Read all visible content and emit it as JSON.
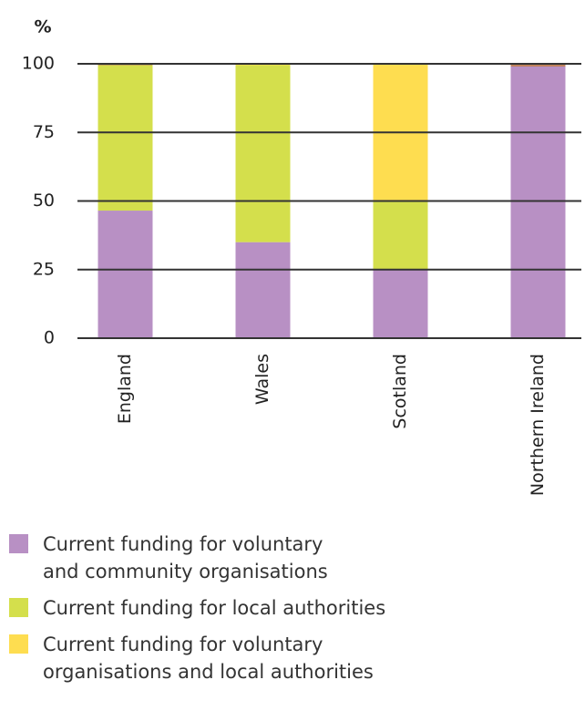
{
  "chart_data": {
    "type": "bar",
    "stacked": true,
    "ylabel": "%",
    "categories": [
      "England",
      "Wales",
      "Scotland",
      "Northern Ireland"
    ],
    "series": [
      {
        "name": "Current funding for voluntary\nand community organisations",
        "color": "#b890c4",
        "values": [
          46.5,
          35,
          25,
          99
        ]
      },
      {
        "name": "Current funding for local authorities",
        "color": "#d4df4c",
        "values": [
          53,
          64.5,
          25,
          0
        ]
      },
      {
        "name": "Current funding for voluntary\norganisations and local authorities",
        "color": "#fedd50",
        "values": [
          0,
          0.5,
          50,
          0
        ]
      },
      {
        "color": "#c0825c",
        "values": [
          0.5,
          0,
          0,
          1
        ]
      }
    ],
    "ylim": [
      0,
      100
    ],
    "yticks": [
      0,
      25,
      50,
      75,
      100
    ],
    "grid": true
  }
}
